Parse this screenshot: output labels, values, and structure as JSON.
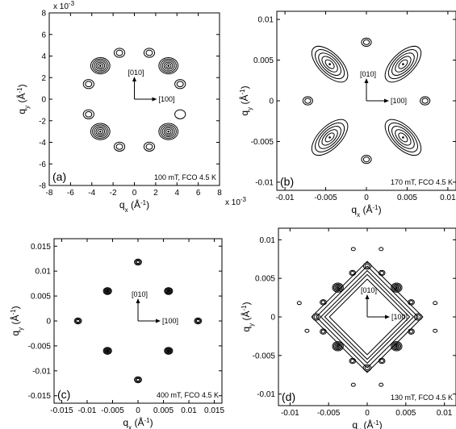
{
  "chart_data": [
    {
      "type": "contour",
      "panel_label": "(a)",
      "annotation": "100 mT, FCO 4.5 K",
      "xlabel": "q",
      "xlabel_sub": "x",
      "xlabel_unit": "(Å",
      "ylabel": "q",
      "ylabel_sub": "y",
      "ylabel_unit": "(Å",
      "unit_exp": "-1",
      "unit_close": ")",
      "xlim": [
        -8,
        8
      ],
      "ylim": [
        -8,
        8
      ],
      "xticks": [
        -8,
        -6,
        -4,
        -2,
        0,
        2,
        4,
        6,
        8
      ],
      "yticks": [
        -8,
        -6,
        -4,
        -2,
        0,
        2,
        4,
        6,
        8
      ],
      "xtick_labels": [
        "-8",
        "-6",
        "-4",
        "-2",
        "0",
        "2",
        "4",
        "6",
        "8"
      ],
      "ytick_labels": [
        "-8",
        "-6",
        "-4",
        "-2",
        "0",
        "2",
        "4",
        "6",
        "8"
      ],
      "x_multiplier": "x 10",
      "y_multiplier": "x 10",
      "multiplier_exp": "-3",
      "arrow_labels": [
        "[010]",
        "[100]"
      ],
      "peaks": [
        {
          "x": -3.2,
          "y": 3.1,
          "rings": 5,
          "size": 0.9
        },
        {
          "x": 3.2,
          "y": 3.1,
          "rings": 5,
          "size": 0.9
        },
        {
          "x": -3.2,
          "y": -3.0,
          "rings": 5,
          "size": 0.9
        },
        {
          "x": 3.2,
          "y": -3.0,
          "rings": 5,
          "size": 0.9
        },
        {
          "x": -1.4,
          "y": 4.3,
          "rings": 2,
          "size": 0.5
        },
        {
          "x": 1.4,
          "y": 4.3,
          "rings": 2,
          "size": 0.5
        },
        {
          "x": -4.3,
          "y": 1.4,
          "rings": 2,
          "size": 0.5
        },
        {
          "x": 4.3,
          "y": 1.4,
          "rings": 2,
          "size": 0.5
        },
        {
          "x": -4.3,
          "y": -1.4,
          "rings": 2,
          "size": 0.5
        },
        {
          "x": 4.3,
          "y": -1.4,
          "rings": 1,
          "size": 0.5
        },
        {
          "x": -1.4,
          "y": -4.4,
          "rings": 2,
          "size": 0.5
        },
        {
          "x": 1.4,
          "y": -4.4,
          "rings": 2,
          "size": 0.5
        }
      ]
    },
    {
      "type": "contour",
      "panel_label": "(b)",
      "annotation": "170 mT, FCO 4.5 K",
      "xlabel": "q",
      "xlabel_sub": "x",
      "xlabel_unit": "(Å",
      "ylabel": "q",
      "ylabel_sub": "y",
      "ylabel_unit": "(Å",
      "unit_exp": "-1",
      "unit_close": ")",
      "xlim": [
        -0.011,
        0.011
      ],
      "ylim": [
        -0.011,
        0.011
      ],
      "xticks": [
        -0.01,
        -0.005,
        0,
        0.005,
        0.01
      ],
      "yticks": [
        -0.01,
        -0.005,
        0,
        0.005,
        0.01
      ],
      "xtick_labels": [
        "-0.01",
        "-0.005",
        "0",
        "0.005",
        "0.01"
      ],
      "ytick_labels": [
        "-0.01",
        "-0.005",
        "0",
        "0.005",
        "0.01"
      ],
      "arrow_labels": [
        "[010]",
        "[100]"
      ],
      "peaks": [
        {
          "x": -0.0045,
          "y": 0.0045,
          "rings": 5,
          "size": 0.0016,
          "elong": 0.0012,
          "angle": 45
        },
        {
          "x": 0.0045,
          "y": 0.0045,
          "rings": 5,
          "size": 0.0016,
          "elong": 0.0012,
          "angle": -45
        },
        {
          "x": -0.0045,
          "y": -0.0045,
          "rings": 5,
          "size": 0.0016,
          "elong": 0.0012,
          "angle": -45
        },
        {
          "x": 0.0045,
          "y": -0.0045,
          "rings": 5,
          "size": 0.0016,
          "elong": 0.0012,
          "angle": 45
        },
        {
          "x": 0.0,
          "y": 0.0072,
          "rings": 2,
          "size": 0.0006
        },
        {
          "x": 0.0,
          "y": -0.0072,
          "rings": 2,
          "size": 0.0006
        },
        {
          "x": -0.0072,
          "y": 0.0,
          "rings": 2,
          "size": 0.0006
        },
        {
          "x": 0.0072,
          "y": 0.0,
          "rings": 2,
          "size": 0.0006
        }
      ]
    },
    {
      "type": "contour",
      "panel_label": "(c)",
      "annotation": "400 mT, FCO 4.5 K",
      "xlabel": "q",
      "xlabel_sub": "x",
      "xlabel_unit": "(Å",
      "ylabel": "q",
      "ylabel_sub": "y",
      "ylabel_unit": "(Å",
      "unit_exp": "-1",
      "unit_close": ")",
      "xlim": [
        -0.0165,
        0.0165
      ],
      "ylim": [
        -0.0165,
        0.0165
      ],
      "xticks": [
        -0.015,
        -0.01,
        -0.005,
        0,
        0.005,
        0.01,
        0.015
      ],
      "yticks": [
        -0.015,
        -0.01,
        -0.005,
        0,
        0.005,
        0.01,
        0.015
      ],
      "xtick_labels": [
        "-0.015",
        "-0.01",
        "-0.005",
        "0",
        "0.005",
        "0.01",
        "0.015"
      ],
      "ytick_labels": [
        "-0.015",
        "-0.01",
        "-0.005",
        "0",
        "0.005",
        "0.01",
        "0.015"
      ],
      "arrow_labels": [
        "[010]",
        "[100]"
      ],
      "peaks": [
        {
          "x": 0.0,
          "y": 0.0118,
          "rings": 3,
          "size": 0.0007
        },
        {
          "x": 0.0,
          "y": -0.0118,
          "rings": 3,
          "size": 0.0007
        },
        {
          "x": -0.0118,
          "y": 0.0,
          "rings": 3,
          "size": 0.0007
        },
        {
          "x": 0.0118,
          "y": 0.0,
          "rings": 3,
          "size": 0.0007
        },
        {
          "x": -0.006,
          "y": 0.006,
          "rings": 4,
          "size": 0.0008
        },
        {
          "x": 0.006,
          "y": 0.006,
          "rings": 4,
          "size": 0.0008
        },
        {
          "x": -0.006,
          "y": -0.006,
          "rings": 4,
          "size": 0.0008
        },
        {
          "x": 0.006,
          "y": -0.006,
          "rings": 4,
          "size": 0.0008
        }
      ]
    },
    {
      "type": "contour",
      "panel_label": "(d)",
      "annotation": "130 mT, FCO 4.5 K",
      "xlabel": "q",
      "xlabel_sub": "x",
      "xlabel_unit": "(Å",
      "ylabel": "q",
      "ylabel_sub": "y",
      "ylabel_unit": "(Å",
      "unit_exp": "-1",
      "unit_close": ")",
      "xlim": [
        -0.0115,
        0.0115
      ],
      "ylim": [
        -0.0115,
        0.0115
      ],
      "xticks": [
        -0.01,
        -0.005,
        0,
        0.005,
        0.01
      ],
      "yticks": [
        -0.01,
        -0.005,
        0,
        0.005,
        0.01
      ],
      "xtick_labels": [
        "-0.01",
        "-0.005",
        "0",
        "0.005",
        "0.01"
      ],
      "ytick_labels": [
        "-0.01",
        "-0.005",
        "0",
        "0.005",
        "0.01"
      ],
      "arrow_labels": [
        "[010]",
        "[100]"
      ],
      "peaks": [
        {
          "x": -0.0038,
          "y": 0.0038,
          "rings": 4,
          "size": 0.0007
        },
        {
          "x": 0.0038,
          "y": 0.0038,
          "rings": 4,
          "size": 0.0007
        },
        {
          "x": -0.0038,
          "y": -0.0038,
          "rings": 4,
          "size": 0.0007
        },
        {
          "x": 0.0038,
          "y": -0.0038,
          "rings": 4,
          "size": 0.0007
        },
        {
          "x": 0.0,
          "y": 0.0066,
          "rings": 2,
          "size": 0.0005
        },
        {
          "x": 0.0,
          "y": -0.0066,
          "rings": 2,
          "size": 0.0005
        },
        {
          "x": -0.0066,
          "y": 0.0,
          "rings": 2,
          "size": 0.0005
        },
        {
          "x": 0.0066,
          "y": 0.0,
          "rings": 2,
          "size": 0.0005
        },
        {
          "x": -0.0019,
          "y": 0.0057,
          "rings": 2,
          "size": 0.0004
        },
        {
          "x": 0.0019,
          "y": 0.0057,
          "rings": 2,
          "size": 0.0004
        },
        {
          "x": -0.0057,
          "y": 0.0019,
          "rings": 2,
          "size": 0.0004
        },
        {
          "x": 0.0057,
          "y": 0.0019,
          "rings": 2,
          "size": 0.0004
        },
        {
          "x": -0.0057,
          "y": -0.0019,
          "rings": 2,
          "size": 0.0004
        },
        {
          "x": 0.0057,
          "y": -0.0019,
          "rings": 2,
          "size": 0.0004
        },
        {
          "x": -0.0019,
          "y": -0.0057,
          "rings": 2,
          "size": 0.0004
        },
        {
          "x": 0.0019,
          "y": -0.0057,
          "rings": 2,
          "size": 0.0004
        }
      ],
      "ring_contours": [
        {
          "radius": 0.0066,
          "rings": 3
        },
        {
          "radius": 0.0052,
          "rings": 2
        }
      ],
      "satellites": [
        {
          "x": -0.0088,
          "y": 0.0018
        },
        {
          "x": 0.0088,
          "y": 0.0018
        },
        {
          "x": -0.0078,
          "y": -0.0018
        },
        {
          "x": 0.0088,
          "y": -0.0018
        },
        {
          "x": -0.0018,
          "y": 0.0088
        },
        {
          "x": 0.0018,
          "y": 0.0088
        },
        {
          "x": -0.0018,
          "y": -0.0088
        },
        {
          "x": 0.0018,
          "y": -0.0088
        }
      ]
    }
  ]
}
